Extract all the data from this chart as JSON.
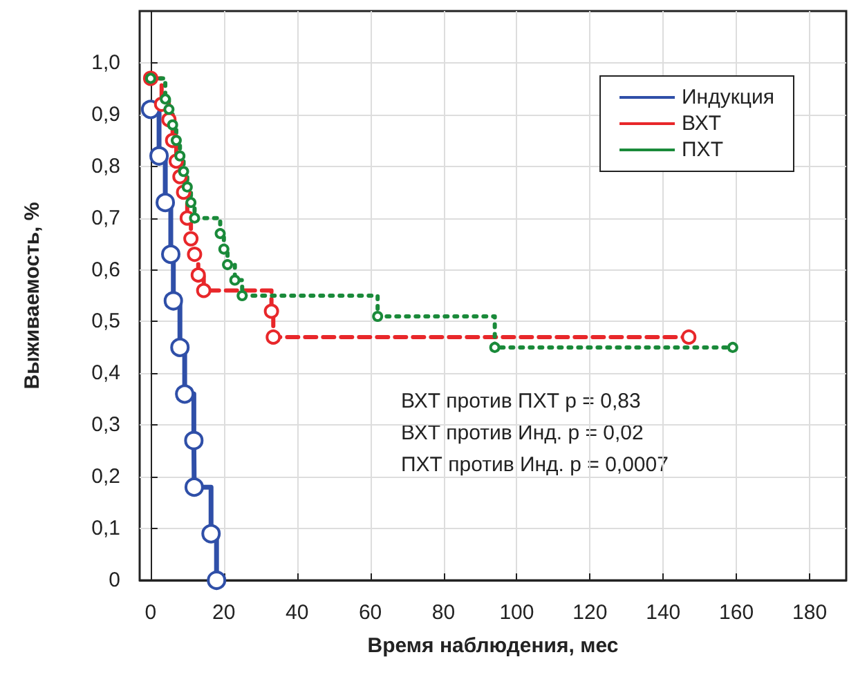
{
  "chart_data": {
    "type": "step",
    "xlabel": "Время наблюдения, мес",
    "ylabel": "Выживаемость, %",
    "series": [
      {
        "name": "Индукция",
        "color": "#2f4fa8",
        "line_style": "solid",
        "x": [
          0,
          2.3,
          4,
          5.5,
          6.2,
          8,
          9.3,
          11.8,
          11.9,
          16.5,
          18
        ],
        "values": [
          0.91,
          0.82,
          0.73,
          0.63,
          0.54,
          0.45,
          0.36,
          0.27,
          0.18,
          0.09,
          0
        ]
      },
      {
        "name": "ВХТ",
        "color": "#e8272a",
        "line_style": "dashed",
        "x": [
          0,
          3,
          5,
          6,
          7,
          8,
          9,
          10,
          11,
          12,
          13,
          14.5,
          33,
          33.5,
          147
        ],
        "values": [
          0.97,
          0.92,
          0.89,
          0.85,
          0.81,
          0.78,
          0.75,
          0.7,
          0.66,
          0.63,
          0.59,
          0.56,
          0.52,
          0.47,
          0.47
        ]
      },
      {
        "name": "ПХТ",
        "color": "#1a8a3a",
        "line_style": "dotted",
        "x": [
          0,
          4,
          5,
          6,
          7,
          8,
          9,
          10,
          11,
          12,
          19,
          20,
          21,
          23,
          25,
          62,
          94,
          159
        ],
        "values": [
          0.97,
          0.93,
          0.91,
          0.88,
          0.85,
          0.82,
          0.79,
          0.76,
          0.73,
          0.7,
          0.67,
          0.64,
          0.61,
          0.58,
          0.55,
          0.51,
          0.45,
          0.45
        ]
      }
    ],
    "xlim": [
      -3,
      190
    ],
    "xticks": [
      0,
      20,
      40,
      60,
      80,
      100,
      120,
      140,
      160,
      180
    ],
    "ylim": [
      0,
      1.1
    ],
    "yticks": [
      0,
      {
        "value": 0.1,
        "label": "0,1"
      },
      {
        "value": 0.2,
        "label": "0,2"
      },
      {
        "value": 0.3,
        "label": "0,3"
      },
      {
        "value": 0.4,
        "label": "0,4"
      },
      {
        "value": 0.5,
        "label": "0,5"
      },
      {
        "value": 0.6,
        "label": "0,6"
      },
      {
        "value": 0.7,
        "label": "0,7"
      },
      {
        "value": 0.8,
        "label": "0,8"
      },
      {
        "value": 0.9,
        "label": "0,9"
      },
      {
        "value": 1,
        "label": "1,0"
      }
    ],
    "grid": true,
    "legend": "top right",
    "marker": "circle",
    "annotations": [
      "ВХТ против ПХТ p = 0,83",
      "ВХТ против Инд. p = 0,02",
      "ПХТ против Инд. p = 0,0007"
    ]
  }
}
